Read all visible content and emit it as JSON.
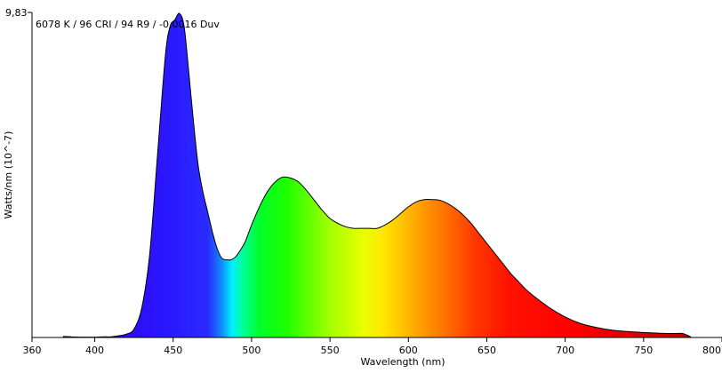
{
  "chart_data": {
    "type": "area",
    "annotation": "6078 K / 96 CRI / 94 R9 / -0,0016 Duv",
    "xlabel": "Wavelength (nm)",
    "ylabel": "Watts/nm (10^-7)",
    "xlim": [
      360,
      800
    ],
    "ylim": [
      0,
      9.83
    ],
    "x_ticks": [
      "360",
      "400",
      "450",
      "500",
      "550",
      "600",
      "650",
      "700",
      "750",
      "800"
    ],
    "x_tick_values": [
      360,
      400,
      450,
      500,
      550,
      600,
      650,
      700,
      750,
      800
    ],
    "y_tick_label": "9,83",
    "grid": false,
    "series": [
      {
        "x": [
          380,
          385,
          390,
          395,
          400,
          405,
          410,
          415,
          420,
          425,
          430,
          435,
          440,
          445,
          448,
          451,
          454,
          457,
          460,
          463,
          466,
          469,
          472,
          475,
          478,
          481,
          484,
          487,
          490,
          493,
          496,
          500,
          505,
          510,
          515,
          520,
          525,
          530,
          535,
          540,
          545,
          550,
          555,
          560,
          565,
          570,
          575,
          580,
          585,
          590,
          595,
          600,
          605,
          610,
          615,
          620,
          625,
          630,
          635,
          640,
          645,
          650,
          655,
          660,
          665,
          670,
          675,
          680,
          690,
          700,
          710,
          720,
          730,
          740,
          750,
          760,
          770,
          775,
          780
        ],
        "values": [
          0.03,
          0.02,
          0.01,
          0.01,
          0.01,
          0.02,
          0.02,
          0.05,
          0.1,
          0.25,
          0.9,
          2.5,
          5.5,
          8.5,
          9.4,
          9.6,
          9.8,
          9.4,
          8.0,
          6.5,
          5.2,
          4.4,
          3.8,
          3.2,
          2.7,
          2.4,
          2.35,
          2.35,
          2.45,
          2.65,
          2.9,
          3.4,
          3.95,
          4.4,
          4.7,
          4.85,
          4.82,
          4.7,
          4.45,
          4.15,
          3.85,
          3.6,
          3.45,
          3.35,
          3.3,
          3.3,
          3.3,
          3.3,
          3.4,
          3.55,
          3.75,
          3.95,
          4.1,
          4.17,
          4.17,
          4.15,
          4.05,
          3.9,
          3.7,
          3.45,
          3.15,
          2.85,
          2.55,
          2.25,
          1.95,
          1.7,
          1.45,
          1.25,
          0.9,
          0.62,
          0.42,
          0.3,
          0.22,
          0.18,
          0.15,
          0.13,
          0.12,
          0.12,
          0.02
        ]
      }
    ]
  }
}
